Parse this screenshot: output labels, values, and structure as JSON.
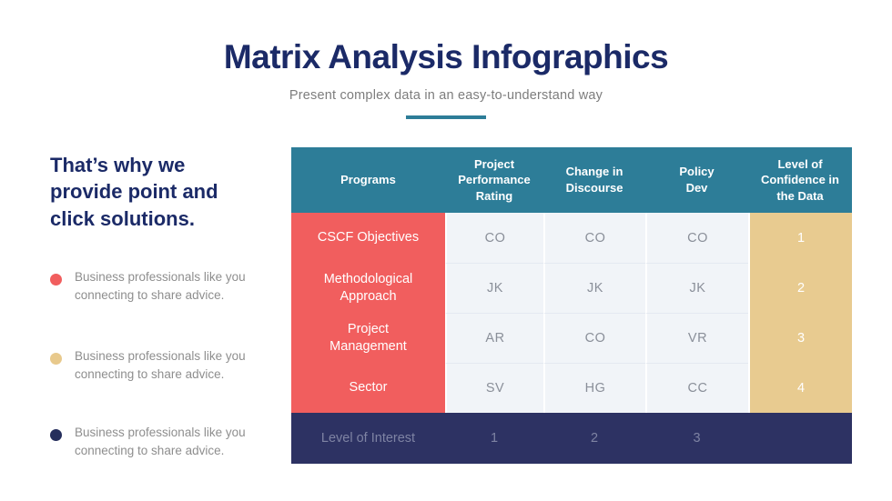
{
  "header": {
    "title": "Matrix Analysis Infographics",
    "subtitle": "Present complex data in an easy-to-understand way"
  },
  "sidebar": {
    "heading": "That’s why we provide point and click solutions.",
    "bullets": [
      {
        "dot_color": "#f15e5e",
        "text": "Business professionals like you connecting to share advice."
      },
      {
        "dot_color": "#e8c98c",
        "text": "Business professionals like you connecting to share advice."
      },
      {
        "dot_color": "#252e5c",
        "text": "Business professionals like you connecting to share advice."
      }
    ]
  },
  "table": {
    "headers": [
      "Programs",
      "Project Performance Rating",
      "Change in Discourse",
      "Policy Dev",
      "Level of Confidence in the Data"
    ],
    "rows": [
      {
        "label": "CSCF Objectives",
        "values": [
          "CO",
          "CO",
          "CO"
        ],
        "confidence": "1"
      },
      {
        "label": "Methodological Approach",
        "values": [
          "JK",
          "JK",
          "JK"
        ],
        "confidence": "2"
      },
      {
        "label": "Project Management",
        "values": [
          "AR",
          "CO",
          "VR"
        ],
        "confidence": "3"
      },
      {
        "label": "Sector",
        "values": [
          "SV",
          "HG",
          "CC"
        ],
        "confidence": "4"
      }
    ],
    "footer": {
      "label": "Level of Interest",
      "values": [
        "1",
        "2",
        "3"
      ],
      "confidence": ""
    }
  },
  "colors": {
    "title_navy": "#1b2a67",
    "accent_teal": "#2d7d98",
    "row_label_red": "#f15e5e",
    "confidence_tan": "#e8cb90",
    "footer_navy": "#2d3263",
    "cell_light": "#f1f4f8",
    "body_text_gray": "#8e8e8e"
  }
}
